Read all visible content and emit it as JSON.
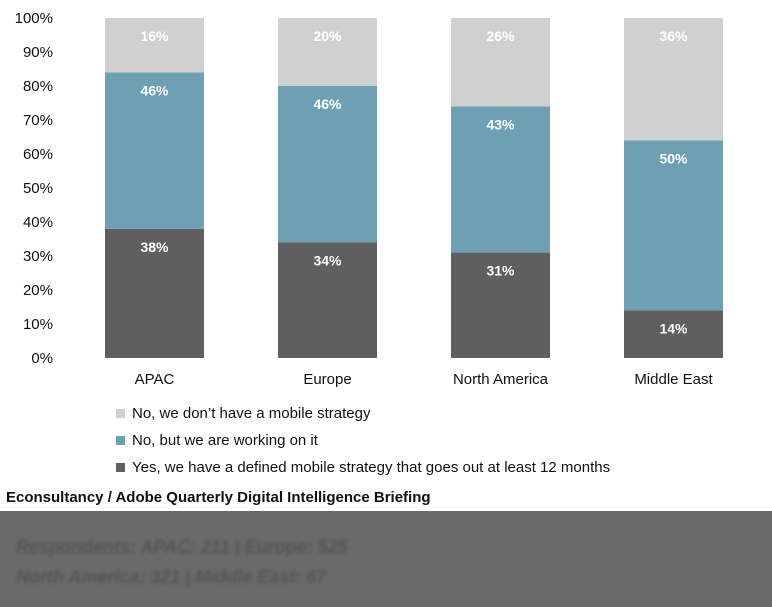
{
  "chart_data": {
    "type": "bar",
    "stacked": true,
    "categories": [
      "APAC",
      "Europe",
      "North America",
      "Middle East"
    ],
    "series": [
      {
        "name": "Yes, we have a defined mobile strategy that goes out at least 12 months",
        "values": [
          38,
          34,
          31,
          14
        ],
        "color": "#5f5f5f"
      },
      {
        "name": "No, but we are working on it",
        "values": [
          46,
          46,
          43,
          50
        ],
        "color": "#6e9fb3"
      },
      {
        "name": "No, we don’t have a mobile strategy",
        "values": [
          16,
          20,
          26,
          36
        ],
        "color": "#d0d0d0"
      }
    ],
    "ylim": [
      0,
      100
    ],
    "y_ticks": [
      "0%",
      "10%",
      "20%",
      "30%",
      "40%",
      "50%",
      "60%",
      "70%",
      "80%",
      "90%",
      "100%"
    ],
    "legend_order": [
      2,
      1,
      0
    ],
    "legend_position": "bottom",
    "grid": false
  },
  "source": "Econsultancy / Adobe Quarterly Digital Intelligence Briefing",
  "footer": {
    "line1": "Respondents: APAC: 211 | Europe: 525",
    "line2": "North America: 321 | Middle East: 67"
  }
}
